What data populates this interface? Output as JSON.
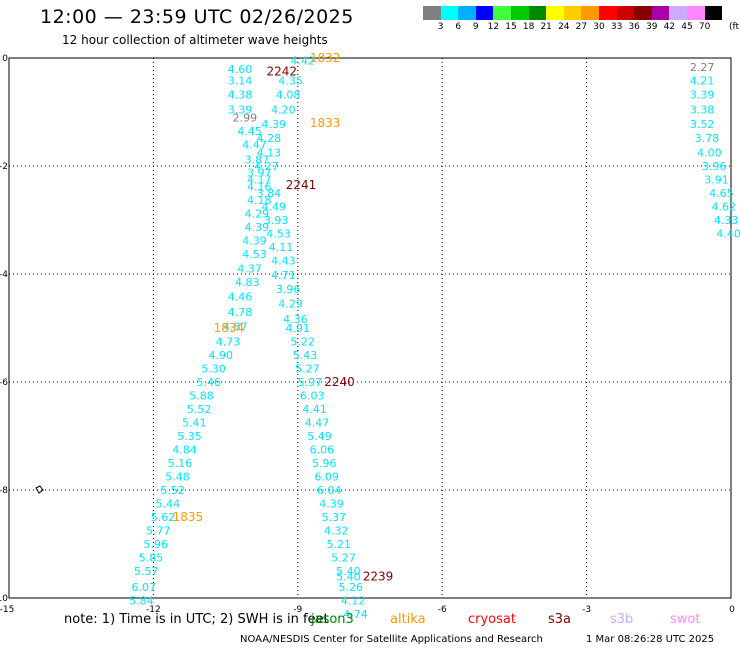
{
  "header": {
    "title": "12:00 — 23:59 UTC 02/26/2025",
    "subtitle": "12 hour collection of altimeter wave heights"
  },
  "legend": {
    "unit": "(ft)",
    "bins": [
      {
        "color": "#808080",
        "label": "3"
      },
      {
        "color": "#00ffff",
        "label": "6"
      },
      {
        "color": "#00b0ff",
        "label": "9"
      },
      {
        "color": "#0000ff",
        "label": "12"
      },
      {
        "color": "#40ff40",
        "label": "15"
      },
      {
        "color": "#00cc00",
        "label": "18"
      },
      {
        "color": "#008800",
        "label": "21"
      },
      {
        "color": "#ffff00",
        "label": "24"
      },
      {
        "color": "#ffcc00",
        "label": "27"
      },
      {
        "color": "#ff9900",
        "label": "30"
      },
      {
        "color": "#ff0000",
        "label": "33"
      },
      {
        "color": "#cc0000",
        "label": "36"
      },
      {
        "color": "#880000",
        "label": "39"
      },
      {
        "color": "#aa00aa",
        "label": "42"
      },
      {
        "color": "#ccaaff",
        "label": "45"
      },
      {
        "color": "#ff88ff",
        "label": "70"
      },
      {
        "color": "#000000",
        "label": ""
      }
    ]
  },
  "axes": {
    "x_ticks": [
      "-15",
      "-12",
      "-9",
      "-6",
      "-3",
      "0"
    ],
    "y_ticks": [
      "0",
      "-2",
      "-4",
      "-6",
      "-8",
      "-10"
    ]
  },
  "tracks": {
    "main": {
      "color": "#00e5ff",
      "labels": [
        {
          "lon": -8.9,
          "lat": -0.05,
          "v": "4.42"
        },
        {
          "lon": -10.2,
          "lat": -0.2,
          "v": "4.60"
        },
        {
          "lon": -9.15,
          "lat": -0.42,
          "v": "4.35"
        },
        {
          "lon": -10.2,
          "lat": -0.42,
          "v": "3.14"
        },
        {
          "lon": -10.2,
          "lat": -0.68,
          "v": "4.38"
        },
        {
          "lon": -9.2,
          "lat": -0.68,
          "v": "4.08"
        },
        {
          "lon": -10.2,
          "lat": -0.95,
          "v": "3.39"
        },
        {
          "lon": -9.3,
          "lat": -0.95,
          "v": "4.20"
        },
        {
          "lon": -9.5,
          "lat": -1.22,
          "v": "4.39"
        },
        {
          "lon": -10.0,
          "lat": -1.35,
          "v": "4.45"
        },
        {
          "lon": -9.6,
          "lat": -1.48,
          "v": "4.28"
        },
        {
          "lon": -9.9,
          "lat": -1.6,
          "v": "4.47"
        },
        {
          "lon": -9.6,
          "lat": -1.75,
          "v": "4.13"
        },
        {
          "lon": -9.85,
          "lat": -1.88,
          "v": "3.87"
        },
        {
          "lon": -9.65,
          "lat": -2.0,
          "v": "4.27"
        },
        {
          "lon": -9.8,
          "lat": -2.12,
          "v": "3.97"
        },
        {
          "lon": -9.8,
          "lat": -2.25,
          "v": "4.17"
        },
        {
          "lon": -9.8,
          "lat": -2.38,
          "v": "4.16"
        },
        {
          "lon": -9.6,
          "lat": -2.5,
          "v": "3.84"
        },
        {
          "lon": -9.8,
          "lat": -2.63,
          "v": "4.18"
        },
        {
          "lon": -9.5,
          "lat": -2.75,
          "v": "4.49"
        },
        {
          "lon": -9.85,
          "lat": -2.88,
          "v": "4.29"
        },
        {
          "lon": -9.45,
          "lat": -3.0,
          "v": "3.93"
        },
        {
          "lon": -9.85,
          "lat": -3.13,
          "v": "4.39"
        },
        {
          "lon": -9.4,
          "lat": -3.25,
          "v": "4.53"
        },
        {
          "lon": -9.9,
          "lat": -3.38,
          "v": "4.39"
        },
        {
          "lon": -9.35,
          "lat": -3.5,
          "v": "4.11"
        },
        {
          "lon": -9.9,
          "lat": -3.63,
          "v": "4.53"
        },
        {
          "lon": -9.3,
          "lat": -3.75,
          "v": "4.43"
        },
        {
          "lon": -10.0,
          "lat": -3.9,
          "v": "4.37"
        },
        {
          "lon": -9.3,
          "lat": -4.02,
          "v": "4.71"
        },
        {
          "lon": -10.05,
          "lat": -4.15,
          "v": "4.83"
        },
        {
          "lon": -9.2,
          "lat": -4.28,
          "v": "3.96"
        },
        {
          "lon": -10.2,
          "lat": -4.42,
          "v": "4.46"
        },
        {
          "lon": -9.15,
          "lat": -4.55,
          "v": "4.29"
        },
        {
          "lon": -10.2,
          "lat": -4.7,
          "v": "4.78"
        },
        {
          "lon": -9.05,
          "lat": -4.83,
          "v": "4.36"
        },
        {
          "lon": -10.3,
          "lat": -4.97,
          "v": "4.87"
        },
        {
          "lon": -9.0,
          "lat": -5.0,
          "v": "4.91"
        },
        {
          "lon": -8.9,
          "lat": -5.25,
          "v": "5.22"
        },
        {
          "lon": -10.45,
          "lat": -5.25,
          "v": "4.73"
        },
        {
          "lon": -8.85,
          "lat": -5.5,
          "v": "5.43"
        },
        {
          "lon": -10.6,
          "lat": -5.5,
          "v": "4.90"
        },
        {
          "lon": -8.8,
          "lat": -5.75,
          "v": "5.27"
        },
        {
          "lon": -10.75,
          "lat": -5.75,
          "v": "5.30"
        },
        {
          "lon": -8.75,
          "lat": -6.0,
          "v": "5.97"
        },
        {
          "lon": -10.85,
          "lat": -6.0,
          "v": "5.46"
        },
        {
          "lon": -8.7,
          "lat": -6.25,
          "v": "6.03"
        },
        {
          "lon": -11.0,
          "lat": -6.25,
          "v": "5.88"
        },
        {
          "lon": -8.65,
          "lat": -6.5,
          "v": "4.41"
        },
        {
          "lon": -11.05,
          "lat": -6.5,
          "v": "5.52"
        },
        {
          "lon": -8.6,
          "lat": -6.75,
          "v": "4.47"
        },
        {
          "lon": -11.15,
          "lat": -6.75,
          "v": "5.41"
        },
        {
          "lon": -8.55,
          "lat": -7.0,
          "v": "5.49"
        },
        {
          "lon": -11.25,
          "lat": -7.0,
          "v": "5.35"
        },
        {
          "lon": -8.5,
          "lat": -7.25,
          "v": "6.06"
        },
        {
          "lon": -11.35,
          "lat": -7.25,
          "v": "4.84"
        },
        {
          "lon": -8.45,
          "lat": -7.5,
          "v": "5.96"
        },
        {
          "lon": -11.45,
          "lat": -7.5,
          "v": "5.16"
        },
        {
          "lon": -8.4,
          "lat": -7.75,
          "v": "6.09"
        },
        {
          "lon": -11.5,
          "lat": -7.75,
          "v": "5.48"
        },
        {
          "lon": -8.35,
          "lat": -8.0,
          "v": "6.04"
        },
        {
          "lon": -11.6,
          "lat": -8.0,
          "v": "5.52"
        },
        {
          "lon": -8.3,
          "lat": -8.25,
          "v": "4.39"
        },
        {
          "lon": -11.7,
          "lat": -8.25,
          "v": "5.44"
        },
        {
          "lon": -8.25,
          "lat": -8.5,
          "v": "5.37"
        },
        {
          "lon": -11.8,
          "lat": -8.5,
          "v": "5.62"
        },
        {
          "lon": -8.2,
          "lat": -8.75,
          "v": "4.32"
        },
        {
          "lon": -11.9,
          "lat": -8.75,
          "v": "5.77"
        },
        {
          "lon": -8.15,
          "lat": -9.0,
          "v": "5.21"
        },
        {
          "lon": -11.95,
          "lat": -9.0,
          "v": "5.96"
        },
        {
          "lon": -8.05,
          "lat": -9.25,
          "v": "5.27"
        },
        {
          "lon": -12.05,
          "lat": -9.25,
          "v": "5.85"
        },
        {
          "lon": -7.95,
          "lat": -9.5,
          "v": "5.40"
        },
        {
          "lon": -7.95,
          "lat": -9.6,
          "v": "5.40"
        },
        {
          "lon": -12.15,
          "lat": -9.5,
          "v": "5.57"
        },
        {
          "lon": -7.9,
          "lat": -9.8,
          "v": "5.26"
        },
        {
          "lon": -12.2,
          "lat": -9.8,
          "v": "6.07"
        },
        {
          "lon": -7.85,
          "lat": -10.05,
          "v": "4.12"
        },
        {
          "lon": -12.25,
          "lat": -10.05,
          "v": "5.84"
        },
        {
          "lon": -7.8,
          "lat": -10.3,
          "v": "4.74"
        }
      ],
      "gray_labels": [
        {
          "lon": -10.1,
          "lat": -1.1,
          "v": "2.99"
        }
      ]
    },
    "right": {
      "color": "#00e5ff",
      "labels": [
        {
          "lon": -0.6,
          "lat": -0.42,
          "v": "4.21"
        },
        {
          "lon": -0.6,
          "lat": -0.68,
          "v": "3.39"
        },
        {
          "lon": -0.6,
          "lat": -0.95,
          "v": "3.38"
        },
        {
          "lon": -0.6,
          "lat": -1.22,
          "v": "3.52"
        },
        {
          "lon": -0.5,
          "lat": -1.48,
          "v": "3.78"
        },
        {
          "lon": -0.45,
          "lat": -1.75,
          "v": "4.00"
        },
        {
          "lon": -0.35,
          "lat": -2.0,
          "v": "3.96"
        },
        {
          "lon": -0.3,
          "lat": -2.25,
          "v": "3.91"
        },
        {
          "lon": -0.2,
          "lat": -2.5,
          "v": "4.65"
        },
        {
          "lon": -0.15,
          "lat": -2.75,
          "v": "4.62"
        },
        {
          "lon": -0.1,
          "lat": -3.0,
          "v": "4.33"
        },
        {
          "lon": -0.05,
          "lat": -3.25,
          "v": "4.40"
        }
      ],
      "gray_labels": [
        {
          "lon": -0.6,
          "lat": -0.17,
          "v": "2.27"
        }
      ]
    }
  },
  "pass_times": [
    {
      "lon": -8.75,
      "lat": 0.0,
      "t": "1832",
      "color": "#ff9900"
    },
    {
      "lon": -9.65,
      "lat": -0.25,
      "t": "2242",
      "color": "#880000"
    },
    {
      "lon": -8.75,
      "lat": -1.2,
      "t": "1833",
      "color": "#ff9900"
    },
    {
      "lon": -9.25,
      "lat": -2.35,
      "t": "2241",
      "color": "#880000"
    },
    {
      "lon": -10.75,
      "lat": -5.0,
      "t": "1834",
      "color": "#ff9900"
    },
    {
      "lon": -8.45,
      "lat": -6.0,
      "t": "2240",
      "color": "#880000"
    },
    {
      "lon": -11.6,
      "lat": -8.5,
      "t": "1835",
      "color": "#ff9900"
    },
    {
      "lon": -7.65,
      "lat": -9.6,
      "t": "2239",
      "color": "#880000"
    }
  ],
  "footer": {
    "note": "note:  1) Time is in UTC;  2) SWH is in feet",
    "satellites": [
      {
        "name": "jason3",
        "color": "#008800"
      },
      {
        "name": "altika",
        "color": "#ff9900"
      },
      {
        "name": "cryosat",
        "color": "#ff0000"
      },
      {
        "name": "s3a",
        "color": "#880000"
      },
      {
        "name": "s3b",
        "color": "#ccaaff"
      },
      {
        "name": "swot",
        "color": "#ff88ff"
      }
    ],
    "credit": "NOAA/NESDIS Center for Satellite Applications and Research",
    "timestamp": "1 Mar 08:26:28 UTC 2025"
  }
}
